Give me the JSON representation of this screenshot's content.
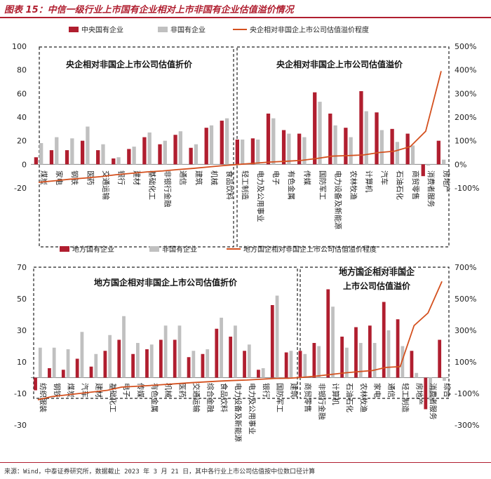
{
  "header": {
    "title": "图表 15：中信一级行业上市国有企业相对上市非国有企业估值溢价情况"
  },
  "footer": {
    "source": "来源：Wind，中泰证券研究所，数据截止 2023 年 3 月 21 日，其中各行业上市公司估值按中位数口径计算"
  },
  "colors": {
    "soe": "#b01e2f",
    "non_soe": "#c0c0c0",
    "premium_line": "#d4501e",
    "title": "#b01e2f"
  },
  "chart_data": [
    {
      "type": "bar+line",
      "legend": [
        "中央国有企业",
        "非国有企业",
        "央企相对非国企上市公司估值溢价程度"
      ],
      "legend_position": "top",
      "annotations": [
        "央企相对非国企上市公司估值折价",
        "央企相对非国企上市公司估值溢价"
      ],
      "categories": [
        "煤炭",
        "家电",
        "钢铁",
        "医药",
        "交通运输",
        "银行",
        "建材",
        "基础化工",
        "非银行金融",
        "通信",
        "建筑",
        "机械",
        "食品饮料",
        "轻工制造",
        "电力及公用事业",
        "电子",
        "有色金属",
        "传媒",
        "国防军工",
        "电力设备及新能源",
        "农林牧渔",
        "计算机",
        "汽车",
        "石油石化",
        "商贸零售",
        "消费者服务",
        "房地产"
      ],
      "series": [
        {
          "name": "中央国有企业",
          "axis": "left",
          "values": [
            6,
            12,
            12,
            20,
            12,
            5,
            13,
            23,
            17,
            25,
            14,
            31,
            37,
            21,
            22,
            43,
            29,
            26,
            61,
            43,
            31,
            62,
            44,
            30,
            26,
            -10,
            20
          ]
        },
        {
          "name": "非国有企业",
          "axis": "left",
          "values": [
            18,
            23,
            22,
            32,
            17,
            6,
            15,
            27,
            20,
            28,
            17,
            33,
            39,
            21,
            21,
            39,
            26,
            23,
            53,
            33,
            23,
            45,
            29,
            19,
            16,
            -1,
            4
          ]
        },
        {
          "name": "央企相对非国企上市公司估值溢价程度",
          "axis": "right",
          "type": "line",
          "values": [
            -76,
            -70,
            -63,
            -58,
            -52,
            -44,
            -38,
            -32,
            -28,
            -22,
            -17,
            -11,
            -5,
            0,
            5,
            10,
            13,
            17,
            25,
            35,
            37,
            40,
            50,
            56,
            75,
            140,
            395
          ]
        }
      ],
      "left_axis": {
        "ylim": [
          -20,
          100
        ],
        "ticks": [
          "-20",
          "0",
          "20",
          "40",
          "60",
          "80",
          "100"
        ]
      },
      "right_axis": {
        "ylim": [
          -100,
          500
        ],
        "ticks": [
          "-100%",
          "0%",
          "100%",
          "200%",
          "300%",
          "400%",
          "500%"
        ]
      }
    },
    {
      "type": "bar+line",
      "legend": [
        "地方国有企业",
        "非国有企业",
        "地方国企相对非国企上市公司估值溢价程度"
      ],
      "legend_position": "top",
      "annotations": [
        "地方国企相对非国企上市公司估值折价",
        "地方国企相对非国企",
        "上市公司估值溢价"
      ],
      "categories": [
        "纺织服装",
        "钢铁",
        "煤炭",
        "汽车",
        "建材",
        "基础化工",
        "电子",
        "传媒",
        "有色金属",
        "机械",
        "医药",
        "交通运输",
        "综合金融",
        "食品饮料",
        "电力设备及新能源",
        "电力及公用事业",
        "银行",
        "国防军工",
        "建筑",
        "商贸零售",
        "非银行金融",
        "计算机",
        "石油石化",
        "农林牧渔",
        "家电",
        "通信",
        "轻工制造",
        "房地产",
        "消费者服务",
        "综合"
      ],
      "series": [
        {
          "name": "地方国有企业",
          "axis": "left",
          "values": [
            -8,
            6,
            5,
            12,
            7,
            17,
            24,
            15,
            18,
            24,
            24,
            13,
            15,
            31,
            26,
            17,
            5,
            46,
            16,
            17,
            22,
            56,
            26,
            32,
            33,
            48,
            37,
            17,
            -20,
            24
          ]
        },
        {
          "name": "非国有企业",
          "axis": "left",
          "values": [
            19,
            19,
            18,
            29,
            15,
            27,
            39,
            22,
            21,
            33,
            33,
            17,
            18,
            38,
            33,
            21,
            6,
            52,
            17,
            15,
            20,
            45,
            19,
            22,
            22,
            30,
            20,
            3,
            -14,
            -2
          ]
        },
        {
          "name": "地方国企相对非国企上市公司估值溢价程度",
          "axis": "right",
          "type": "line",
          "values": [
            -140,
            -120,
            -110,
            -100,
            -90,
            -80,
            -60,
            -55,
            -50,
            -44,
            -38,
            -32,
            -27,
            -22,
            -18,
            -15,
            -10,
            -5,
            -4,
            2,
            10,
            20,
            30,
            38,
            45,
            65,
            70,
            330,
            410,
            610
          ]
        }
      ],
      "left_axis": {
        "ylim": [
          -30,
          70
        ],
        "ticks": [
          "-30",
          "-10",
          "10",
          "30",
          "50",
          "70"
        ]
      },
      "right_axis": {
        "ylim": [
          -300,
          700
        ],
        "ticks": [
          "-300%",
          "-100%",
          "100%",
          "300%",
          "500%",
          "700%"
        ]
      }
    }
  ]
}
